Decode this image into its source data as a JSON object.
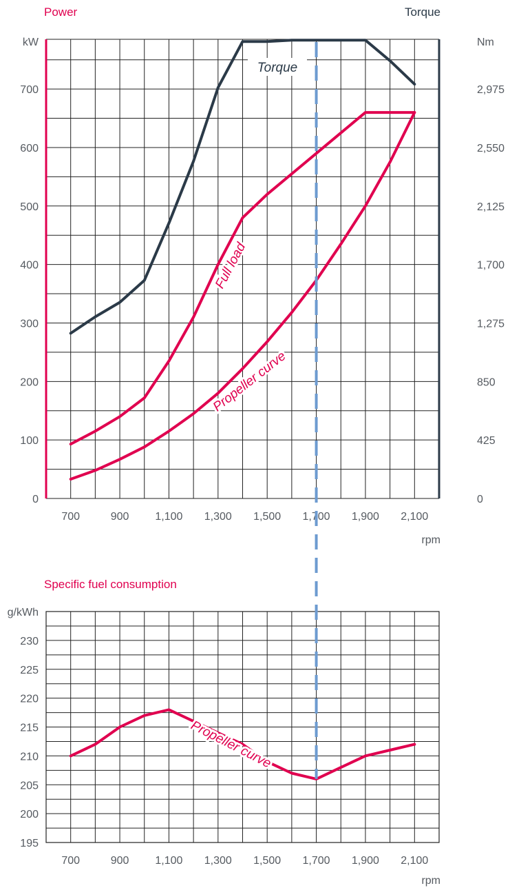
{
  "colors": {
    "red": "#e0004f",
    "dark": "#2b3a48",
    "dashed": "#6d9bd0",
    "grid": "#222222"
  },
  "chart_data": [
    {
      "type": "line",
      "title_left": "Power",
      "title_right": "Torque",
      "y_unit_left": "kW",
      "y_unit_right": "Nm",
      "x_unit": "rpm",
      "x_ticks": [
        "700",
        "900",
        "1,100",
        "1,300",
        "1,500",
        "1,700",
        "1,900",
        "2,100"
      ],
      "y_ticks_left": [
        "0",
        "100",
        "200",
        "300",
        "400",
        "500",
        "600",
        "700"
      ],
      "y_ticks_right": [
        "0",
        "425",
        "850",
        "1,275",
        "1,700",
        "2,125",
        "2,550",
        "2,975"
      ],
      "xlim": [
        600,
        2200
      ],
      "ylim_left": [
        0,
        785
      ],
      "ylim_right": [
        0,
        3336
      ],
      "grid": true,
      "reference_rpm": 1700,
      "series": [
        {
          "name": "Torque",
          "axis": "right",
          "color": "dark",
          "x": [
            700,
            800,
            900,
            1000,
            1100,
            1200,
            1300,
            1400,
            1500,
            1600,
            1700,
            1800,
            1900,
            2000,
            2100
          ],
          "y": [
            1200,
            1320,
            1425,
            1585,
            2000,
            2450,
            2985,
            3320,
            3320,
            3330,
            3330,
            3330,
            3330,
            3180,
            3010
          ]
        },
        {
          "name": "Full load",
          "axis": "left",
          "color": "red",
          "x": [
            700,
            800,
            900,
            1000,
            1100,
            1200,
            1300,
            1400,
            1500,
            1600,
            1700,
            1800,
            1900,
            2000,
            2100
          ],
          "y": [
            93,
            115,
            140,
            172,
            235,
            310,
            400,
            480,
            520,
            555,
            590,
            625,
            660,
            660,
            660
          ]
        },
        {
          "name": "Propeller curve",
          "axis": "left",
          "color": "red",
          "x": [
            700,
            800,
            900,
            1000,
            1100,
            1200,
            1300,
            1400,
            1500,
            1600,
            1700,
            1800,
            1900,
            2000,
            2100
          ],
          "y": [
            33,
            48,
            67,
            88,
            115,
            145,
            180,
            222,
            268,
            318,
            373,
            435,
            500,
            575,
            660
          ]
        }
      ]
    },
    {
      "type": "line",
      "title_left": "Specific fuel consumption",
      "y_unit_left": "g/kWh",
      "x_unit": "rpm",
      "x_ticks": [
        "700",
        "900",
        "1,100",
        "1,300",
        "1,500",
        "1,700",
        "1,900",
        "2,100"
      ],
      "y_ticks_left": [
        "195",
        "200",
        "205",
        "210",
        "215",
        "220",
        "225",
        "230"
      ],
      "xlim": [
        600,
        2200
      ],
      "ylim_left": [
        195,
        235
      ],
      "grid": true,
      "reference_rpm": 1700,
      "series": [
        {
          "name": "Propeller curve",
          "axis": "left",
          "color": "red",
          "x": [
            700,
            800,
            900,
            1000,
            1100,
            1200,
            1300,
            1400,
            1500,
            1600,
            1700,
            1800,
            1900,
            2000,
            2100
          ],
          "y": [
            210,
            212,
            215,
            217,
            218,
            216,
            214,
            212,
            209,
            207,
            206,
            208,
            210,
            211,
            212
          ]
        }
      ]
    }
  ]
}
